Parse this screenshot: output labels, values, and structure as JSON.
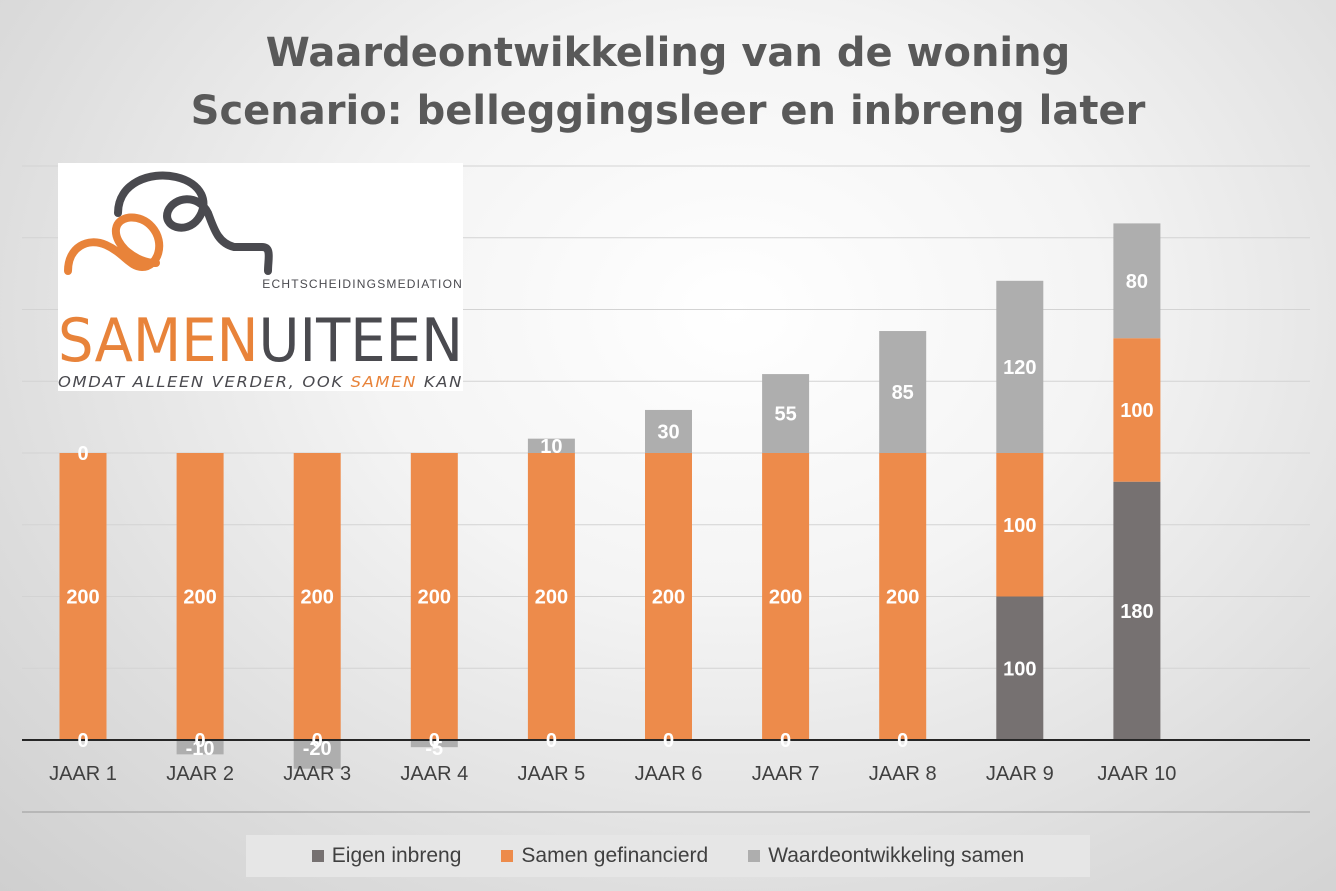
{
  "title_line1": "Waardeontwikkeling van de woning",
  "title_line2": "Scenario: belleggingsleer en inbreng later",
  "logo": {
    "tagline_top": "ECHTSCHEIDINGSMEDIATION",
    "brand_part1": "SAMEN",
    "brand_part2": "UITEEN",
    "slogan_part1": "OMDAT ALLEEN VERDER, OOK ",
    "slogan_part2": "SAMEN",
    "slogan_part3": " KAN"
  },
  "colors": {
    "eigen": "#767171",
    "samen": "#ED8B4B",
    "waarde": "#AEAEAE",
    "brand_orange": "#E8833A",
    "brand_dark": "#4A4A4F"
  },
  "chart_data": {
    "type": "bar",
    "stacked": true,
    "categories": [
      "JAAR 1",
      "JAAR 2",
      "JAAR 3",
      "JAAR 4",
      "JAAR 5",
      "JAAR 6",
      "JAAR 7",
      "JAAR 8",
      "JAAR 9",
      "JAAR 10"
    ],
    "series": [
      {
        "name": "Eigen inbreng",
        "values": [
          0,
          0,
          0,
          0,
          0,
          0,
          0,
          0,
          100,
          180
        ]
      },
      {
        "name": "Samen gefinancierd",
        "values": [
          200,
          200,
          200,
          200,
          200,
          200,
          200,
          200,
          100,
          100
        ]
      },
      {
        "name": "Waardeontwikkeling samen",
        "values": [
          0,
          -10,
          -20,
          -5,
          10,
          30,
          55,
          85,
          120,
          80
        ]
      }
    ],
    "ylim": [
      -50,
      400
    ],
    "gridlines": true,
    "legend_position": "bottom"
  }
}
